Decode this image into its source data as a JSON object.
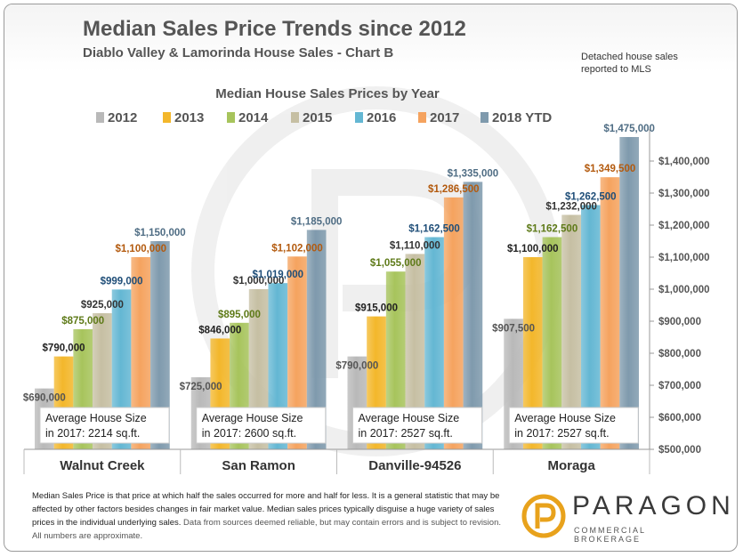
{
  "header": {
    "title": "Median Sales Price Trends since 2012",
    "subtitle": "Diablo Valley & Lamorinda House Sales - Chart B",
    "note_line1": "Detached house sales",
    "note_line2": "reported to MLS"
  },
  "chart_data": {
    "type": "bar",
    "title": "Median House Sales Prices by Year",
    "categories": [
      "Walnut Creek",
      "San Ramon",
      "Danville-94526",
      "Moraga"
    ],
    "series": [
      {
        "name": "2012",
        "values": [
          690000,
          725000,
          790000,
          907500
        ],
        "labels": [
          "$690,000",
          "$725,000",
          "$790,000",
          "$907,500"
        ]
      },
      {
        "name": "2013",
        "values": [
          790000,
          846000,
          915000,
          1100000
        ],
        "labels": [
          "$790,000",
          "$846,000",
          "$915,000",
          "$1,100,000"
        ]
      },
      {
        "name": "2014",
        "values": [
          875000,
          895000,
          1055000,
          1162500
        ],
        "labels": [
          "$875,000",
          "$895,000",
          "$1,055,000",
          "$1,162,500"
        ]
      },
      {
        "name": "2015",
        "values": [
          925000,
          1000000,
          1110000,
          1232000
        ],
        "labels": [
          "$925,000",
          "$1,000,000",
          "$1,110,000",
          "$1,232,000"
        ]
      },
      {
        "name": "2016",
        "values": [
          999000,
          1019000,
          1162500,
          1262500
        ],
        "labels": [
          "$999,000",
          "$1,019,000",
          "$1,162,500",
          "$1,262,500"
        ]
      },
      {
        "name": "2017",
        "values": [
          1100000,
          1102000,
          1286500,
          1349500
        ],
        "labels": [
          "$1,100,000",
          "$1,102,000",
          "$1,286,500",
          "$1,349,500"
        ]
      },
      {
        "name": "2018 YTD",
        "values": [
          1150000,
          1185000,
          1335000,
          1475000
        ],
        "labels": [
          "$1,150,000",
          "$1,185,000",
          "$1,335,000",
          "$1,475,000"
        ]
      }
    ],
    "ylim": [
      500000,
      1500000
    ],
    "yticks": [
      {
        "value": 500000,
        "label": "$500,000"
      },
      {
        "value": 600000,
        "label": "$600,000"
      },
      {
        "value": 700000,
        "label": "$700,000"
      },
      {
        "value": 800000,
        "label": "$800,000"
      },
      {
        "value": 900000,
        "label": "$900,000"
      },
      {
        "value": 1000000,
        "label": "$1,000,000"
      },
      {
        "value": 1100000,
        "label": "$1,100,000"
      },
      {
        "value": 1200000,
        "label": "$1,200,000"
      },
      {
        "value": 1300000,
        "label": "$1,300,000"
      },
      {
        "value": 1400000,
        "label": "$1,400,000"
      }
    ],
    "legend_position": "top",
    "grid": false,
    "y_axis_side": "right",
    "colors": {
      "2012": "#b9b9b9",
      "2013": "#f3b72b",
      "2014": "#a7c45c",
      "2015": "#c6bfa3",
      "2016": "#64b7d3",
      "2017": "#f5a35f",
      "2018 YTD": "#7f9aad"
    },
    "label_colors": {
      "2012": "#555555",
      "2013": "#222222",
      "2014": "#5e7a18",
      "2015": "#333333",
      "2016": "#1f4e78",
      "2017": "#b35a0e",
      "2018 YTD": "#4f6d84"
    },
    "annotations": [
      {
        "line1": "Average House Size",
        "line2": "in 2017: 2214 sq.ft."
      },
      {
        "line1": "Average House Size",
        "line2": "in 2017: 2600 sq.ft."
      },
      {
        "line1": "Average House Size",
        "line2": "in 2017: 2527 sq.ft."
      },
      {
        "line1": "Average House Size",
        "line2": "in 2017: 2527 sq.ft."
      }
    ]
  },
  "footnote": {
    "main": "Median Sales Price is that price at which half the sales occurred for more and half for less. It is a general statistic that may be affected by other factors besides changes in fair market value. Median sales prices typically disguise a huge variety of sales prices in the individual underlying sales.",
    "disclaimer": "Data from sources deemed reliable, but may contain errors and is subject to revision.  All numbers are approximate."
  },
  "logo": {
    "wordmark": "PARAGON",
    "tagline": "COMMERCIAL BROKERAGE",
    "icon": "paragon-p-icon",
    "accent": "#e8a21c"
  }
}
